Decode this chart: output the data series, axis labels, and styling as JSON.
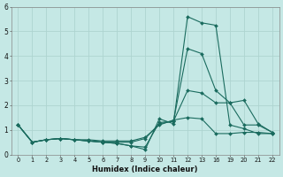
{
  "xlabel": "Humidex (Indice chaleur)",
  "background_color": "#c5e8e5",
  "grid_color": "#aed4d0",
  "line_color": "#1a6b5e",
  "lines": [
    {
      "x": [
        0,
        1,
        2,
        3,
        4,
        5,
        6,
        7,
        8,
        9,
        10,
        11,
        12,
        13,
        16,
        19,
        20,
        21,
        22
      ],
      "y": [
        1.2,
        0.5,
        0.6,
        0.65,
        0.6,
        0.55,
        0.5,
        0.45,
        0.35,
        0.2,
        1.45,
        1.25,
        5.6,
        5.35,
        5.25,
        1.2,
        1.05,
        0.85,
        0.85
      ]
    },
    {
      "x": [
        0,
        1,
        2,
        3,
        4,
        5,
        6,
        7,
        8,
        9,
        10,
        11,
        12,
        13,
        16,
        19,
        20,
        21,
        22
      ],
      "y": [
        1.2,
        0.5,
        0.6,
        0.65,
        0.6,
        0.55,
        0.5,
        0.45,
        0.35,
        0.3,
        1.3,
        1.35,
        4.3,
        4.1,
        2.6,
        2.1,
        1.2,
        1.2,
        0.9
      ]
    },
    {
      "x": [
        0,
        1,
        2,
        3,
        4,
        5,
        6,
        7,
        8,
        9,
        10,
        11,
        12,
        13,
        16,
        19,
        20,
        21,
        22
      ],
      "y": [
        1.2,
        0.5,
        0.6,
        0.65,
        0.6,
        0.55,
        0.5,
        0.5,
        0.5,
        0.65,
        1.25,
        1.35,
        2.6,
        2.5,
        2.1,
        2.1,
        2.2,
        1.25,
        0.9
      ]
    },
    {
      "x": [
        0,
        1,
        2,
        3,
        4,
        5,
        6,
        7,
        8,
        9,
        10,
        11,
        12,
        13,
        16,
        19,
        20,
        21,
        22
      ],
      "y": [
        1.2,
        0.5,
        0.6,
        0.65,
        0.6,
        0.6,
        0.55,
        0.55,
        0.55,
        0.7,
        1.2,
        1.4,
        1.5,
        1.45,
        0.85,
        0.85,
        0.9,
        0.9,
        0.85
      ]
    }
  ],
  "xtick_labels": [
    "0",
    "1",
    "2",
    "3",
    "4",
    "5",
    "6",
    "7",
    "8",
    "9",
    "10",
    "11",
    "12",
    "13",
    "16",
    "19",
    "20",
    "21",
    "22"
  ],
  "xtick_positions": [
    0,
    1,
    2,
    3,
    4,
    5,
    6,
    7,
    8,
    9,
    10,
    11,
    12,
    13,
    14,
    15,
    16,
    17,
    18
  ],
  "xlim": [
    -0.5,
    18.5
  ],
  "ylim": [
    0,
    6
  ],
  "yticks": [
    0,
    1,
    2,
    3,
    4,
    5,
    6
  ]
}
